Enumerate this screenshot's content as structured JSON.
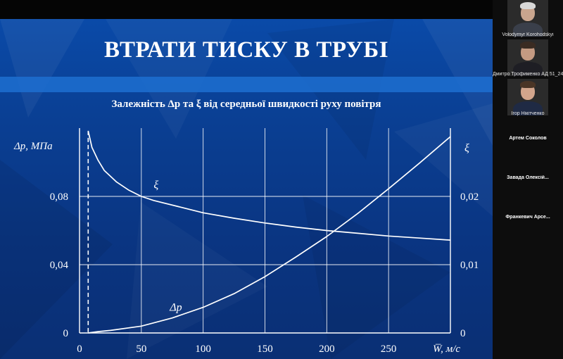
{
  "slide": {
    "title": "ВТРАТИ ТИСКУ В ТРУБІ",
    "subtitle": "Залежність Δp та ξ від середньої швидкості руху повітря"
  },
  "chart_data": {
    "type": "line",
    "title": "Залежність Δp та ξ від середньої швидкості руху повітря",
    "xlabel": "W̅, м/с",
    "ylabel_left": "Δp, МПа",
    "ylabel_right": "ξ",
    "xlim": [
      0,
      300
    ],
    "ylim_left": [
      0,
      0.12
    ],
    "ylim_right": [
      0,
      0.03
    ],
    "x_ticks": [
      "0",
      "50",
      "100",
      "150",
      "200",
      "250"
    ],
    "y_left_ticks": [
      "0",
      "0,04",
      "0,08"
    ],
    "y_right_ticks": [
      "0",
      "0,01",
      "0,02"
    ],
    "grid": true,
    "dashed_marker_x": 7,
    "series": [
      {
        "name": "ξ",
        "axis": "right",
        "x": [
          7,
          10,
          15,
          20,
          30,
          40,
          50,
          60,
          80,
          100,
          125,
          150,
          175,
          200,
          225,
          250,
          275,
          300
        ],
        "y": [
          0.0296,
          0.0272,
          0.0253,
          0.0238,
          0.0221,
          0.0209,
          0.02,
          0.0194,
          0.0185,
          0.0176,
          0.0168,
          0.0161,
          0.0155,
          0.015,
          0.0146,
          0.0142,
          0.0139,
          0.0136
        ]
      },
      {
        "name": "Δp",
        "axis": "left",
        "x": [
          7,
          15,
          25,
          50,
          75,
          100,
          125,
          150,
          175,
          200,
          225,
          250,
          275,
          300
        ],
        "y": [
          0.0,
          0.0008,
          0.0015,
          0.004,
          0.0088,
          0.015,
          0.023,
          0.033,
          0.0445,
          0.0565,
          0.07,
          0.0845,
          0.0995,
          0.115
        ]
      }
    ]
  },
  "participants": [
    {
      "name": "Volodymyr Korohodskyi",
      "video": true
    },
    {
      "name": "Дмитро Трофименко АД 51_24",
      "video": true
    },
    {
      "name": "Ігор Нікітченко",
      "video": true
    },
    {
      "name": "Артем Соколов",
      "video": false
    },
    {
      "name": "Завада Олексій...",
      "video": false
    },
    {
      "name": "Франкевич Арсе...",
      "video": false
    }
  ]
}
